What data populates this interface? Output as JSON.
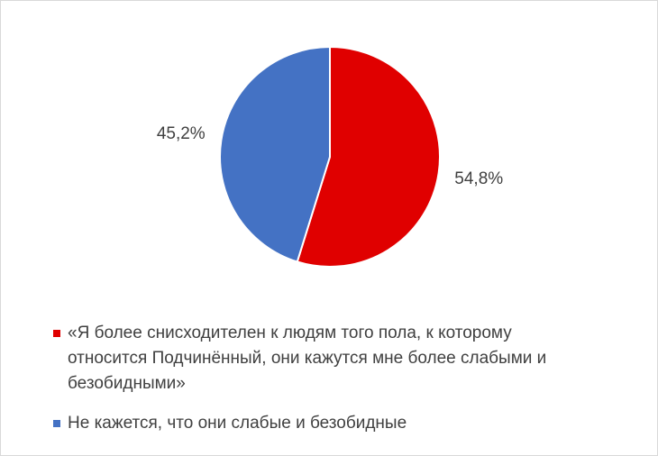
{
  "chart_data": {
    "type": "pie",
    "categories": [
      "«Я более снисходителен к людям того пола, к которому относится Подчинённый, они кажутся мне более слабыми и безобидными»",
      "Не кажется, что они слабые и безобидные"
    ],
    "values": [
      54.8,
      45.2
    ],
    "value_labels": [
      "54,8%",
      "45,2%"
    ],
    "colors": [
      "#e00000",
      "#4472c4"
    ],
    "legend": "bottom"
  }
}
